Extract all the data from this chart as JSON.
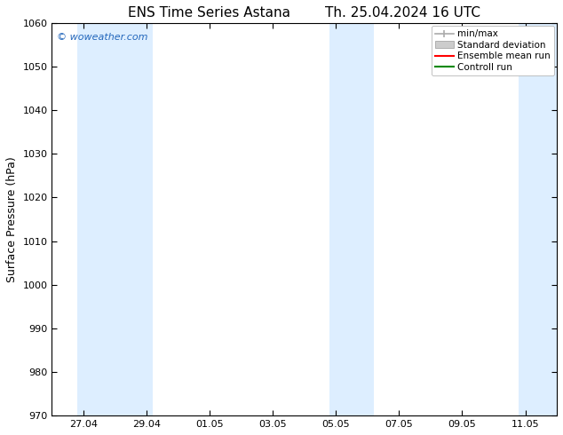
{
  "title_left": "ENS Time Series Astana",
  "title_right": "Th. 25.04.2024 16 UTC",
  "ylabel": "Surface Pressure (hPa)",
  "ylim": [
    970,
    1060
  ],
  "yticks": [
    970,
    980,
    990,
    1000,
    1010,
    1020,
    1030,
    1040,
    1050,
    1060
  ],
  "xlim_start": 0,
  "xlim_end": 16,
  "xtick_labels": [
    "27.04",
    "29.04",
    "01.05",
    "03.05",
    "05.05",
    "07.05",
    "09.05",
    "11.05"
  ],
  "xtick_positions": [
    1,
    3,
    5,
    7,
    9,
    11,
    13,
    15
  ],
  "shaded_bands": [
    {
      "x_start": 0.8,
      "x_end": 3.2
    },
    {
      "x_start": 8.8,
      "x_end": 10.2
    },
    {
      "x_start": 14.8,
      "x_end": 16.0
    }
  ],
  "band_color": "#ddeeff",
  "background_color": "#ffffff",
  "watermark": "© woweather.com",
  "watermark_color": "#2266bb",
  "legend_entries": [
    {
      "label": "min/max",
      "type": "minmax",
      "color": "#aaaaaa"
    },
    {
      "label": "Standard deviation",
      "type": "fill",
      "color": "#cccccc"
    },
    {
      "label": "Ensemble mean run",
      "type": "line",
      "color": "#ff0000"
    },
    {
      "label": "Controll run",
      "type": "line",
      "color": "#008800"
    }
  ],
  "title_fontsize": 11,
  "axis_label_fontsize": 9,
  "tick_fontsize": 8,
  "legend_fontsize": 7.5
}
